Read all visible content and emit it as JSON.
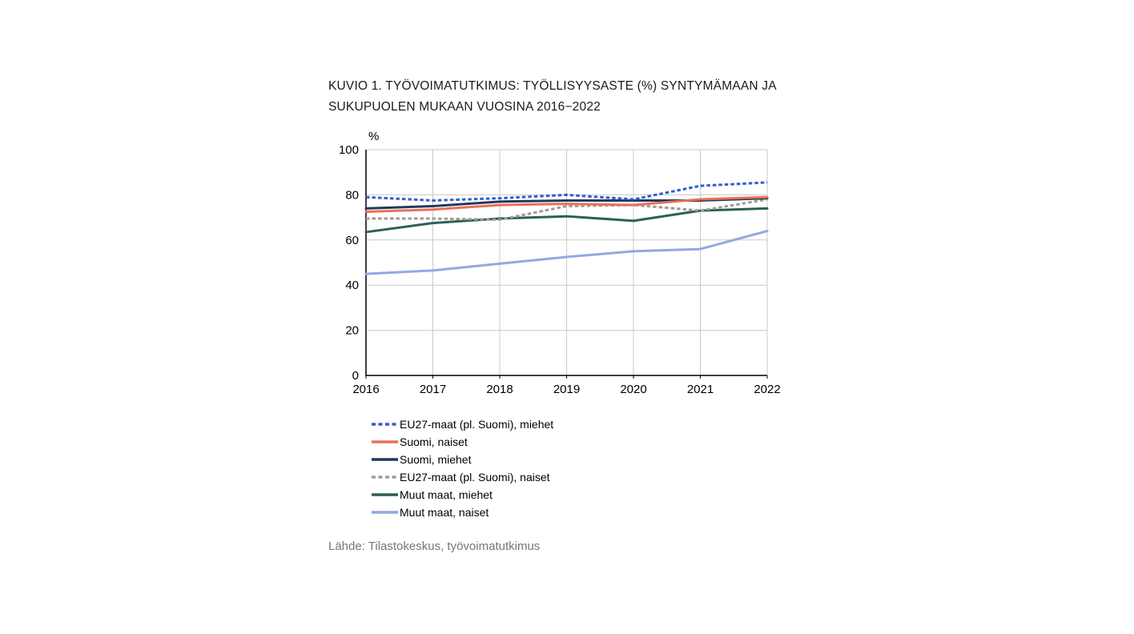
{
  "page": {
    "title_line1": "KUVIO 1. TYÖVOIMATUTKIMUS: TYÖLLISYYSASTE (%) SYNTYMÄMAAN JA",
    "title_line2": "SUKUPUOLEN MUKAAN VUOSINA 2016−2022",
    "source": "Lähde: Tilastokeskus, työvoimatutkimus"
  },
  "chart_data": {
    "type": "line",
    "title": "KUVIO 1. TYÖVOIMATUTKIMUS: TYÖLLISYYSASTE (%) SYNTYMÄMAAN JA SUKUPUOLEN MUKAAN VUOSINA 2016−2022",
    "unit_label": "%",
    "categories": [
      "2016",
      "2017",
      "2018",
      "2019",
      "2020",
      "2021",
      "2022"
    ],
    "ylim": [
      0,
      100
    ],
    "ytick_interval": 20,
    "grid": true,
    "legend_position": "bottom-left",
    "colors": {
      "grid": "#c9c9c9",
      "axis": "#000000"
    },
    "series": [
      {
        "name": "EU27-maat (pl. Suomi), miehet",
        "color": "#2f5ed2",
        "dash": true,
        "values": [
          79,
          77.5,
          78.5,
          80,
          78,
          84,
          85.5
        ]
      },
      {
        "name": "Suomi, naiset",
        "color": "#ea7058",
        "dash": false,
        "values": [
          72.5,
          73.5,
          75.5,
          76,
          75.5,
          78,
          79
        ]
      },
      {
        "name": "Suomi, miehet",
        "color": "#20395e",
        "dash": false,
        "values": [
          74,
          75,
          77,
          77.5,
          77.5,
          77.5,
          78.5
        ]
      },
      {
        "name": "EU27-maat (pl. Suomi), naiset",
        "color": "#a19a92",
        "dash": true,
        "values": [
          69.5,
          69.5,
          69,
          75,
          75.5,
          73,
          78
        ]
      },
      {
        "name": "Muut maat, miehet",
        "color": "#2b6152",
        "dash": false,
        "values": [
          63.5,
          67.5,
          69.5,
          70.5,
          68.5,
          73,
          74
        ]
      },
      {
        "name": "Muut maat, naiset",
        "color": "#94a8e0",
        "dash": false,
        "values": [
          45,
          46.5,
          49.5,
          52.5,
          55,
          56,
          64
        ]
      }
    ]
  }
}
